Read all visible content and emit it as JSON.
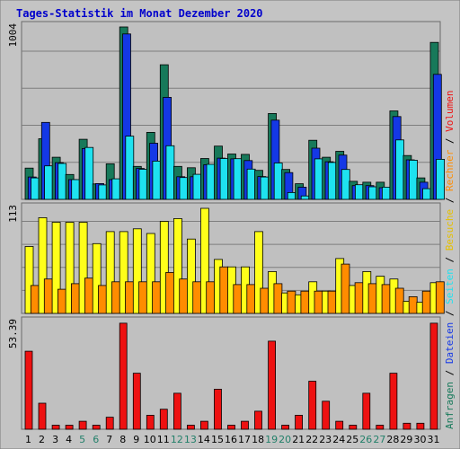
{
  "title": "Tages-Statistik im Monat Dezember 2020",
  "colors": {
    "background": "#c4c4c4",
    "plot_background": "#c0c0c0",
    "grid": "#7e7e7e",
    "title": "#0000cc",
    "anfragen": "#17795a",
    "dateien": "#1438e6",
    "seiten": "#1ee2f0",
    "besuche": "#ffff1a",
    "rechner": "#ff8c00",
    "volumen": "#ee1111",
    "weekend_label": "#23806a"
  },
  "chart_data": [
    {
      "type": "bar",
      "panel": "top",
      "y_max_label": "1004",
      "ylim": [
        0,
        1004
      ],
      "grid": true,
      "categories": [
        "1",
        "2",
        "3",
        "4",
        "5",
        "6",
        "7",
        "8",
        "9",
        "10",
        "11",
        "12",
        "13",
        "14",
        "15",
        "16",
        "17",
        "18",
        "19",
        "20",
        "21",
        "22",
        "23",
        "24",
        "25",
        "26",
        "27",
        "28",
        "29",
        "30",
        "31"
      ],
      "series": [
        {
          "name": "Anfragen",
          "values": [
            182,
            353,
            245,
            145,
            350,
            90,
            207,
            1004,
            192,
            390,
            784,
            192,
            184,
            238,
            310,
            264,
            262,
            169,
            500,
            174,
            91,
            344,
            245,
            280,
            105,
            100,
            100,
            515,
            255,
            125,
            914
          ]
        },
        {
          "name": "Dateien",
          "values": [
            130,
            448,
            214,
            115,
            296,
            92,
            115,
            963,
            180,
            327,
            594,
            132,
            132,
            202,
            240,
            236,
            226,
            133,
            461,
            156,
            71,
            298,
            219,
            258,
            80,
            80,
            68,
            482,
            230,
            100,
            728
          ]
        },
        {
          "name": "Seiten",
          "values": [
            125,
            195,
            209,
            115,
            302,
            84,
            120,
            368,
            175,
            223,
            312,
            127,
            146,
            204,
            238,
            237,
            176,
            130,
            212,
            40,
            20,
            236,
            215,
            174,
            85,
            73,
            71,
            346,
            228,
            62,
            233
          ]
        }
      ]
    },
    {
      "type": "bar",
      "panel": "middle",
      "y_max_label": "113",
      "ylim": [
        0,
        113
      ],
      "grid": true,
      "categories": [
        "1",
        "2",
        "3",
        "4",
        "5",
        "6",
        "7",
        "8",
        "9",
        "10",
        "11",
        "12",
        "13",
        "14",
        "15",
        "16",
        "17",
        "18",
        "19",
        "20",
        "21",
        "22",
        "23",
        "24",
        "25",
        "26",
        "27",
        "28",
        "29",
        "30",
        "31"
      ],
      "series": [
        {
          "name": "Besuche",
          "values": [
            72,
            103,
            98,
            98,
            98,
            75,
            88,
            88,
            91,
            86,
            99,
            102,
            80,
            113,
            58,
            50,
            50,
            88,
            45,
            22,
            20,
            34,
            24,
            59,
            30,
            45,
            40,
            37,
            13,
            12,
            33
          ]
        },
        {
          "name": "Rechner",
          "values": [
            30,
            37,
            26,
            32,
            38,
            30,
            34,
            34,
            34,
            34,
            44,
            37,
            34,
            34,
            50,
            31,
            31,
            27,
            32,
            24,
            24,
            24,
            24,
            53,
            33,
            32,
            31,
            27,
            18,
            24,
            34
          ]
        }
      ]
    },
    {
      "type": "bar",
      "panel": "bottom",
      "y_max_label": "53.39",
      "ylim": [
        0,
        53.39
      ],
      "grid": false,
      "categories": [
        "1",
        "2",
        "3",
        "4",
        "5",
        "6",
        "7",
        "8",
        "9",
        "10",
        "11",
        "12",
        "13",
        "14",
        "15",
        "16",
        "17",
        "18",
        "19",
        "20",
        "21",
        "22",
        "23",
        "24",
        "25",
        "26",
        "27",
        "28",
        "29",
        "30",
        "31"
      ],
      "series": [
        {
          "name": "Volumen",
          "values": [
            39,
            13,
            2,
            2,
            4,
            2,
            6,
            53,
            28,
            7,
            10,
            18,
            2,
            4,
            20,
            2,
            4,
            9,
            44,
            2,
            7,
            24,
            14,
            4,
            2,
            18,
            2,
            28,
            3,
            3,
            53
          ]
        }
      ]
    }
  ],
  "right_legend_top": [
    {
      "text": "Anfragen",
      "color": "#17795a"
    },
    {
      "text": " / ",
      "color": "#000000"
    },
    {
      "text": "Dateien",
      "color": "#1438e6"
    },
    {
      "text": " / ",
      "color": "#000000"
    },
    {
      "text": "Seiten",
      "color": "#1ee2f0"
    },
    {
      "text": " / ",
      "color": "#000000"
    },
    {
      "text": "Besuche",
      "color": "#e5c000"
    },
    {
      "text": " / ",
      "color": "#000000"
    },
    {
      "text": "Rechner",
      "color": "#ff8c00"
    },
    {
      "text": " / ",
      "color": "#000000"
    },
    {
      "text": "Volumen",
      "color": "#ee1111"
    }
  ],
  "weekend_days": [
    "5",
    "6",
    "12",
    "13",
    "19",
    "20",
    "26",
    "27"
  ]
}
